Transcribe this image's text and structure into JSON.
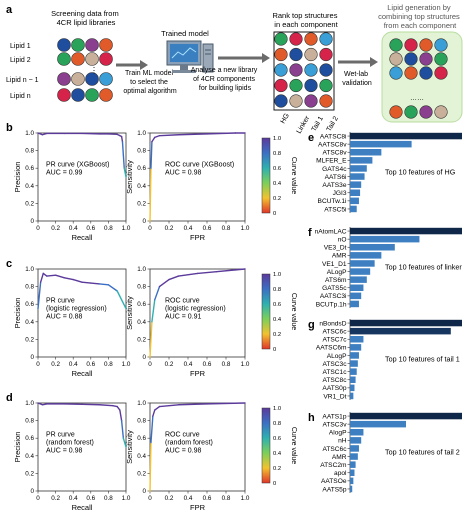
{
  "panel_a": {
    "letter": "a",
    "screening_title": [
      "Screening data from",
      "4CR lipid libraries"
    ],
    "lipid_labels": [
      "Lipid 1",
      "Lipid 2",
      "Lipid n − 1",
      "Lipid n"
    ],
    "trained_model_label": "Trained model",
    "train_text": [
      "Train ML model",
      "to select the",
      "optimal algorithm"
    ],
    "analyse_text": [
      "Analyse a new library",
      "of 4CR components",
      "for building lipids"
    ],
    "rank_title": [
      "Rank top structures",
      "in each component"
    ],
    "component_labels": [
      "HG",
      "Linker",
      "Tail 1",
      "Tail 2"
    ],
    "wetlab_text": [
      "Wet-lab",
      "validation"
    ],
    "generation_title": [
      "Lipid generation by",
      "combining top structures",
      "from each component"
    ],
    "ellipsis": "……",
    "colors": [
      "#1f4e9e",
      "#2aa35a",
      "#8a3f8f",
      "#e05a2a",
      "#c9b09a",
      "#d6234a",
      "#3a9fd6"
    ]
  },
  "roc_curves": [
    {
      "letter": "b",
      "pr": {
        "type": "line",
        "title": "PR curve (XGBoost)",
        "auc": "AUC = 0.99",
        "xlabel": "Recall",
        "ylabel": "Precision",
        "x": [
          0.0,
          0.05,
          0.1,
          0.3,
          0.5,
          0.7,
          0.8,
          0.9,
          0.93,
          0.95,
          0.96,
          0.97,
          0.98,
          1.0
        ],
        "y": [
          1.0,
          0.98,
          0.995,
          0.995,
          0.995,
          0.99,
          0.99,
          0.985,
          0.97,
          0.96,
          0.9,
          0.75,
          0.6,
          0.5
        ]
      },
      "roc": {
        "type": "line",
        "title": "ROC curve (XGBoost)",
        "auc": "AUC = 0.98",
        "xlabel": "FPR",
        "ylabel": "Sensitivity",
        "x": [
          0.0,
          0.01,
          0.02,
          0.05,
          0.1,
          0.3,
          0.6,
          0.9,
          1.0
        ],
        "y": [
          0.0,
          0.6,
          0.9,
          0.95,
          0.97,
          0.98,
          0.99,
          1.0,
          1.0
        ]
      },
      "colorbar_label": "Curve value"
    },
    {
      "letter": "c",
      "pr": {
        "type": "line",
        "title": [
          "PR curve",
          "(logistic regression)"
        ],
        "auc": "AUC = 0.88",
        "xlabel": "Recall",
        "ylabel": "Precision",
        "x": [
          0.0,
          0.03,
          0.06,
          0.1,
          0.2,
          0.3,
          0.4,
          0.5,
          0.6,
          0.7,
          0.8,
          0.9,
          1.0
        ],
        "y": [
          0.55,
          0.85,
          0.95,
          0.92,
          0.93,
          0.9,
          0.88,
          0.85,
          0.84,
          0.83,
          0.82,
          0.75,
          0.55
        ]
      },
      "roc": {
        "type": "line",
        "title": [
          "ROC curve",
          "(logistic regression)"
        ],
        "auc": "AUC = 0.91",
        "xlabel": "FPR",
        "ylabel": "Sensitivity",
        "x": [
          0.0,
          0.02,
          0.05,
          0.1,
          0.2,
          0.3,
          0.5,
          0.7,
          0.9,
          1.0
        ],
        "y": [
          0.0,
          0.4,
          0.65,
          0.8,
          0.88,
          0.92,
          0.95,
          0.97,
          0.99,
          1.0
        ]
      },
      "colorbar_label": "Curve value"
    },
    {
      "letter": "d",
      "pr": {
        "type": "line",
        "title": [
          "PR curve",
          "(random forest)"
        ],
        "auc": "AUC = 0.98",
        "xlabel": "Recall",
        "ylabel": "Precision",
        "x": [
          0.0,
          0.05,
          0.1,
          0.3,
          0.5,
          0.7,
          0.85,
          0.9,
          0.93,
          0.95,
          0.97,
          1.0
        ],
        "y": [
          1.0,
          0.98,
          0.99,
          0.99,
          0.985,
          0.98,
          0.97,
          0.96,
          0.92,
          0.8,
          0.6,
          0.5
        ]
      },
      "roc": {
        "type": "line",
        "title": [
          "ROC curve",
          "(random forest)"
        ],
        "auc": "AUC = 0.98",
        "xlabel": "FPR",
        "ylabel": "Sensitivity",
        "x": [
          0.0,
          0.01,
          0.03,
          0.05,
          0.1,
          0.3,
          0.6,
          1.0
        ],
        "y": [
          0.0,
          0.55,
          0.85,
          0.92,
          0.96,
          0.98,
          0.99,
          1.0
        ]
      },
      "colorbar_label": "Curve value"
    }
  ],
  "axis_ticks": [
    "0",
    "0.2",
    "0.4",
    "0.6",
    "0.8",
    "1.0"
  ],
  "colorbar_ticks": [
    "1.0",
    "0.8",
    "0.6",
    "0.4",
    "0.2",
    "0"
  ],
  "feature_panels": [
    {
      "letter": "e",
      "caption": "Top 10 features of HG",
      "type": "bar",
      "features": [
        "AATSC8i",
        "AATSC8v",
        "ATSC8v",
        "MLFER_E",
        "GATS4c",
        "AATS6i",
        "AATS3e",
        "JGI3",
        "BCUTw.1i",
        "ATSC5i"
      ],
      "values": [
        1.0,
        0.55,
        0.28,
        0.2,
        0.15,
        0.13,
        0.1,
        0.09,
        0.08,
        0.06
      ]
    },
    {
      "letter": "f",
      "caption": "Top 10 features of linker",
      "type": "bar",
      "features": [
        "nAtomLAC",
        "nO",
        "VE3_Dt",
        "AMR",
        "VE1_D1",
        "ALogP",
        "ATS6m",
        "GATS5c",
        "AATSC3i",
        "BCUTp.1h"
      ],
      "values": [
        1.0,
        0.62,
        0.4,
        0.28,
        0.22,
        0.18,
        0.15,
        0.12,
        0.1,
        0.08
      ]
    },
    {
      "letter": "g",
      "caption": "Top 10 features of tail 1",
      "type": "bar",
      "features": [
        "nBondsD",
        "ATSC6c",
        "ATSC7c",
        "AATSC6m",
        "ALogP",
        "ATSC3c",
        "ATSC1c",
        "ATSC8c",
        "AATS0p",
        "VR1_Dt"
      ],
      "values": [
        1.0,
        0.9,
        0.12,
        0.1,
        0.08,
        0.07,
        0.06,
        0.05,
        0.04,
        0.03
      ]
    },
    {
      "letter": "h",
      "caption": "Top 10 features of tail 2",
      "type": "bar",
      "features": [
        "AATS1p",
        "ATSC3v",
        "AlogP",
        "nH",
        "ATSC6c",
        "AMR",
        "ATSC2m",
        "apol",
        "AATSOe",
        "AATS5p"
      ],
      "values": [
        1.0,
        0.5,
        0.12,
        0.1,
        0.08,
        0.07,
        0.05,
        0.04,
        0.03,
        0.02
      ]
    }
  ]
}
